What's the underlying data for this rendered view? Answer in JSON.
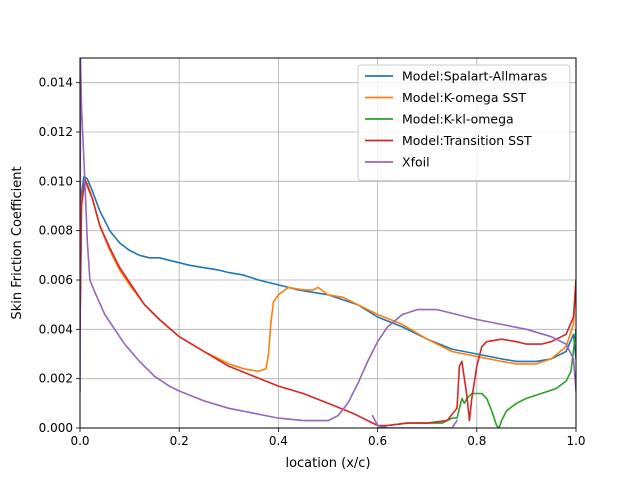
{
  "chart_data": {
    "type": "line",
    "title": "",
    "xlabel": "location (x/c)",
    "ylabel": "Skin Friction Coefficient",
    "xlim": [
      0.0,
      1.0
    ],
    "ylim": [
      0.0,
      0.015
    ],
    "xticks": [
      0.0,
      0.2,
      0.4,
      0.6,
      0.8,
      1.0
    ],
    "xtick_labels": [
      "0.0",
      "0.2",
      "0.4",
      "0.6",
      "0.8",
      "1.0"
    ],
    "yticks": [
      0.0,
      0.002,
      0.004,
      0.006,
      0.008,
      0.01,
      0.012,
      0.014
    ],
    "ytick_labels": [
      "0.000",
      "0.002",
      "0.004",
      "0.006",
      "0.008",
      "0.010",
      "0.012",
      "0.014"
    ],
    "grid": true,
    "legend_position": "upper-right",
    "series": [
      {
        "name": "Model:Spalart-Allmaras",
        "color": "#1f77b4",
        "points": [
          [
            0.0,
            0.004
          ],
          [
            0.003,
            0.0095
          ],
          [
            0.008,
            0.0102
          ],
          [
            0.015,
            0.0101
          ],
          [
            0.025,
            0.0096
          ],
          [
            0.04,
            0.0088
          ],
          [
            0.06,
            0.008
          ],
          [
            0.08,
            0.0075
          ],
          [
            0.1,
            0.0072
          ],
          [
            0.12,
            0.007
          ],
          [
            0.14,
            0.0069
          ],
          [
            0.16,
            0.0069
          ],
          [
            0.18,
            0.0068
          ],
          [
            0.2,
            0.0067
          ],
          [
            0.22,
            0.0066
          ],
          [
            0.25,
            0.0065
          ],
          [
            0.28,
            0.0064
          ],
          [
            0.3,
            0.0063
          ],
          [
            0.33,
            0.0062
          ],
          [
            0.36,
            0.006
          ],
          [
            0.38,
            0.0059
          ],
          [
            0.4,
            0.0058
          ],
          [
            0.42,
            0.0057
          ],
          [
            0.44,
            0.0056
          ],
          [
            0.47,
            0.0055
          ],
          [
            0.5,
            0.0054
          ],
          [
            0.53,
            0.0052
          ],
          [
            0.56,
            0.005
          ],
          [
            0.6,
            0.0045
          ],
          [
            0.65,
            0.0041
          ],
          [
            0.7,
            0.0036
          ],
          [
            0.75,
            0.0032
          ],
          [
            0.8,
            0.003
          ],
          [
            0.85,
            0.0028
          ],
          [
            0.88,
            0.0027
          ],
          [
            0.92,
            0.0027
          ],
          [
            0.95,
            0.0028
          ],
          [
            0.98,
            0.0031
          ],
          [
            0.995,
            0.0038
          ],
          [
            1.0,
            0.0028
          ]
        ]
      },
      {
        "name": "Model:K-omega SST",
        "color": "#ff7f0e",
        "points": [
          [
            0.0,
            0.004
          ],
          [
            0.003,
            0.0092
          ],
          [
            0.01,
            0.01
          ],
          [
            0.015,
            0.0099
          ],
          [
            0.025,
            0.0093
          ],
          [
            0.04,
            0.0082
          ],
          [
            0.06,
            0.0072
          ],
          [
            0.08,
            0.0064
          ],
          [
            0.1,
            0.0058
          ],
          [
            0.13,
            0.005
          ],
          [
            0.16,
            0.0044
          ],
          [
            0.2,
            0.0037
          ],
          [
            0.25,
            0.0031
          ],
          [
            0.3,
            0.0026
          ],
          [
            0.33,
            0.0024
          ],
          [
            0.36,
            0.0023
          ],
          [
            0.375,
            0.0024
          ],
          [
            0.38,
            0.003
          ],
          [
            0.385,
            0.0043
          ],
          [
            0.39,
            0.0051
          ],
          [
            0.4,
            0.0054
          ],
          [
            0.42,
            0.0057
          ],
          [
            0.45,
            0.0056
          ],
          [
            0.47,
            0.0056
          ],
          [
            0.48,
            0.0057
          ],
          [
            0.5,
            0.0054
          ],
          [
            0.53,
            0.0053
          ],
          [
            0.56,
            0.005
          ],
          [
            0.6,
            0.0046
          ],
          [
            0.65,
            0.0042
          ],
          [
            0.7,
            0.0036
          ],
          [
            0.75,
            0.0031
          ],
          [
            0.8,
            0.0029
          ],
          [
            0.85,
            0.0027
          ],
          [
            0.88,
            0.0026
          ],
          [
            0.92,
            0.0026
          ],
          [
            0.95,
            0.0028
          ],
          [
            0.98,
            0.0033
          ],
          [
            0.995,
            0.0042
          ],
          [
            1.0,
            0.006
          ]
        ]
      },
      {
        "name": "Model:K-kl-omega",
        "color": "#2ca02c",
        "points": [
          [
            0.6,
            0.0
          ],
          [
            0.62,
            0.0001
          ],
          [
            0.66,
            0.0002
          ],
          [
            0.7,
            0.0002
          ],
          [
            0.73,
            0.0002
          ],
          [
            0.74,
            0.0003
          ],
          [
            0.75,
            0.0004
          ],
          [
            0.76,
            0.0004
          ],
          [
            0.77,
            0.0012
          ],
          [
            0.775,
            0.001
          ],
          [
            0.78,
            0.0012
          ],
          [
            0.79,
            0.0014
          ],
          [
            0.8,
            0.0014
          ],
          [
            0.81,
            0.0014
          ],
          [
            0.82,
            0.0012
          ],
          [
            0.83,
            0.0007
          ],
          [
            0.84,
            0.0001
          ],
          [
            0.845,
            0.0
          ],
          [
            0.85,
            0.0003
          ],
          [
            0.86,
            0.0007
          ],
          [
            0.88,
            0.001
          ],
          [
            0.9,
            0.0012
          ],
          [
            0.93,
            0.0014
          ],
          [
            0.96,
            0.0016
          ],
          [
            0.98,
            0.0019
          ],
          [
            0.99,
            0.0023
          ],
          [
            1.0,
            0.004
          ]
        ]
      },
      {
        "name": "Model:Transition SST",
        "color": "#d62728",
        "points": [
          [
            0.0,
            0.004
          ],
          [
            0.003,
            0.009
          ],
          [
            0.01,
            0.0101
          ],
          [
            0.015,
            0.0098
          ],
          [
            0.025,
            0.0093
          ],
          [
            0.04,
            0.0082
          ],
          [
            0.06,
            0.0073
          ],
          [
            0.08,
            0.0065
          ],
          [
            0.1,
            0.0059
          ],
          [
            0.13,
            0.005
          ],
          [
            0.16,
            0.0044
          ],
          [
            0.2,
            0.0037
          ],
          [
            0.25,
            0.0031
          ],
          [
            0.3,
            0.0025
          ],
          [
            0.35,
            0.0021
          ],
          [
            0.4,
            0.0017
          ],
          [
            0.45,
            0.0014
          ],
          [
            0.5,
            0.001
          ],
          [
            0.55,
            0.0006
          ],
          [
            0.58,
            0.0003
          ],
          [
            0.6,
            0.0001
          ],
          [
            0.62,
            0.0001
          ],
          [
            0.66,
            0.0002
          ],
          [
            0.7,
            0.0002
          ],
          [
            0.74,
            0.0003
          ],
          [
            0.76,
            0.0008
          ],
          [
            0.765,
            0.0025
          ],
          [
            0.77,
            0.0027
          ],
          [
            0.775,
            0.002
          ],
          [
            0.78,
            0.0013
          ],
          [
            0.785,
            0.0003
          ],
          [
            0.79,
            0.0012
          ],
          [
            0.8,
            0.0025
          ],
          [
            0.81,
            0.0033
          ],
          [
            0.82,
            0.0035
          ],
          [
            0.85,
            0.0036
          ],
          [
            0.88,
            0.0035
          ],
          [
            0.9,
            0.0034
          ],
          [
            0.93,
            0.0034
          ],
          [
            0.95,
            0.0035
          ],
          [
            0.98,
            0.0038
          ],
          [
            0.995,
            0.0045
          ],
          [
            1.0,
            0.006
          ]
        ]
      },
      {
        "name": "Xfoil",
        "color": "#9467bd",
        "points": [
          [
            0.0,
            0.0015
          ],
          [
            0.001,
            0.015
          ],
          [
            0.003,
            0.013
          ],
          [
            0.008,
            0.0108
          ],
          [
            0.015,
            0.0075
          ],
          [
            0.02,
            0.006
          ],
          [
            0.03,
            0.0055
          ],
          [
            0.05,
            0.0046
          ],
          [
            0.07,
            0.004
          ],
          [
            0.09,
            0.0034
          ],
          [
            0.12,
            0.0027
          ],
          [
            0.15,
            0.0021
          ],
          [
            0.18,
            0.0017
          ],
          [
            0.2,
            0.0015
          ],
          [
            0.25,
            0.0011
          ],
          [
            0.3,
            0.0008
          ],
          [
            0.35,
            0.0006
          ],
          [
            0.4,
            0.0004
          ],
          [
            0.45,
            0.0003
          ],
          [
            0.5,
            0.0003
          ],
          [
            0.52,
            0.0005
          ],
          [
            0.54,
            0.001
          ],
          [
            0.56,
            0.0018
          ],
          [
            0.58,
            0.0027
          ],
          [
            0.6,
            0.0035
          ],
          [
            0.62,
            0.0041
          ],
          [
            0.65,
            0.0046
          ],
          [
            0.68,
            0.0048
          ],
          [
            0.72,
            0.0048
          ],
          [
            0.76,
            0.0046
          ],
          [
            0.8,
            0.0044
          ],
          [
            0.85,
            0.0042
          ],
          [
            0.9,
            0.004
          ],
          [
            0.95,
            0.0037
          ],
          [
            0.98,
            0.0034
          ],
          [
            0.995,
            0.0028
          ],
          [
            1.0,
            0.0015
          ]
        ]
      },
      {
        "name": "",
        "color": "#9467bd",
        "points": [
          [
            0.59,
            0.0005
          ],
          [
            0.6,
            0.0001
          ],
          [
            0.62,
            0.0
          ],
          [
            0.7,
            0.0
          ],
          [
            0.75,
            0.0
          ],
          [
            0.76,
            0.0003
          ]
        ]
      }
    ]
  }
}
